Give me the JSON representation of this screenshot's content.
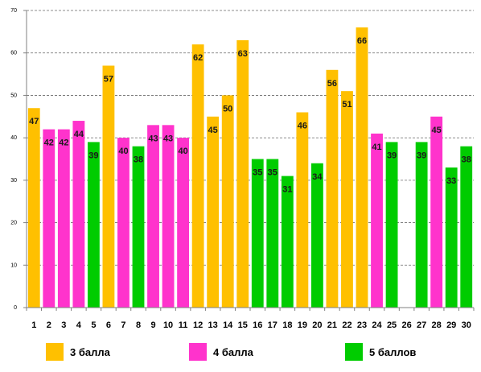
{
  "chart_data": {
    "type": "bar",
    "title": "",
    "xlabel": "",
    "ylabel": "",
    "ylim": [
      0,
      70
    ],
    "yticks": [
      0,
      10,
      20,
      30,
      40,
      50,
      60,
      70
    ],
    "grid": true,
    "legend_position": "bottom",
    "categories": [
      "1",
      "2",
      "3",
      "4",
      "5",
      "6",
      "7",
      "8",
      "9",
      "10",
      "11",
      "12",
      "13",
      "14",
      "15",
      "16",
      "17",
      "18",
      "19",
      "20",
      "21",
      "22",
      "23",
      "24",
      "25",
      "26",
      "27",
      "28",
      "29",
      "30"
    ],
    "values": [
      47,
      42,
      42,
      44,
      39,
      57,
      40,
      38,
      43,
      43,
      40,
      62,
      45,
      50,
      63,
      35,
      35,
      31,
      46,
      34,
      56,
      51,
      66,
      41,
      39,
      null,
      39,
      45,
      33,
      38
    ],
    "groups": [
      "g3",
      "g4",
      "g4",
      "g4",
      "g5",
      "g3",
      "g4",
      "g5",
      "g4",
      "g4",
      "g4",
      "g3",
      "g3",
      "g3",
      "g3",
      "g5",
      "g5",
      "g5",
      "g3",
      "g5",
      "g3",
      "g3",
      "g3",
      "g4",
      "g5",
      null,
      "g5",
      "g4",
      "g5",
      "g5"
    ],
    "legend": [
      {
        "key": "g3",
        "label": "3 балла",
        "color": "#FFC000"
      },
      {
        "key": "g4",
        "label": "4 балла",
        "color": "#FF33CC"
      },
      {
        "key": "g5",
        "label": "5 баллов",
        "color": "#00CC00"
      }
    ]
  }
}
